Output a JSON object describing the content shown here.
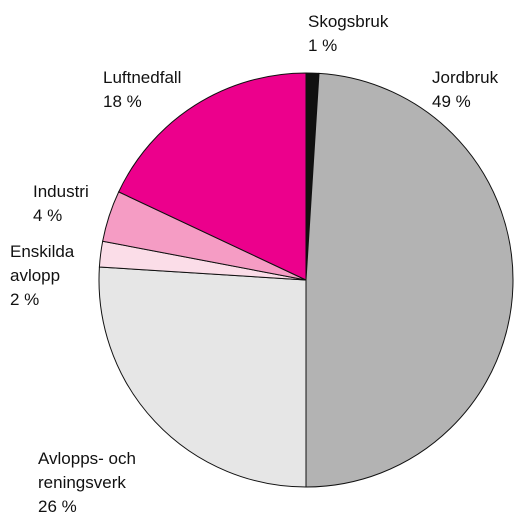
{
  "chart_data": {
    "type": "pie",
    "categories": [
      "Skogsbruk",
      "Jordbruk",
      "Avlopps- och reningsverk",
      "Enskilda avlopp",
      "Industri",
      "Luftnedfall"
    ],
    "values": [
      1,
      49,
      26,
      2,
      4,
      18
    ],
    "value_labels": [
      "1 %",
      "49 %",
      "26 %",
      "2 %",
      "4 %",
      "18 %"
    ],
    "colors": [
      "#111111",
      "#b3b3b3",
      "#e6e6e6",
      "#fbdde8",
      "#f59cc4",
      "#ec008c"
    ],
    "start_angle": 0,
    "direction": "clockwise"
  }
}
